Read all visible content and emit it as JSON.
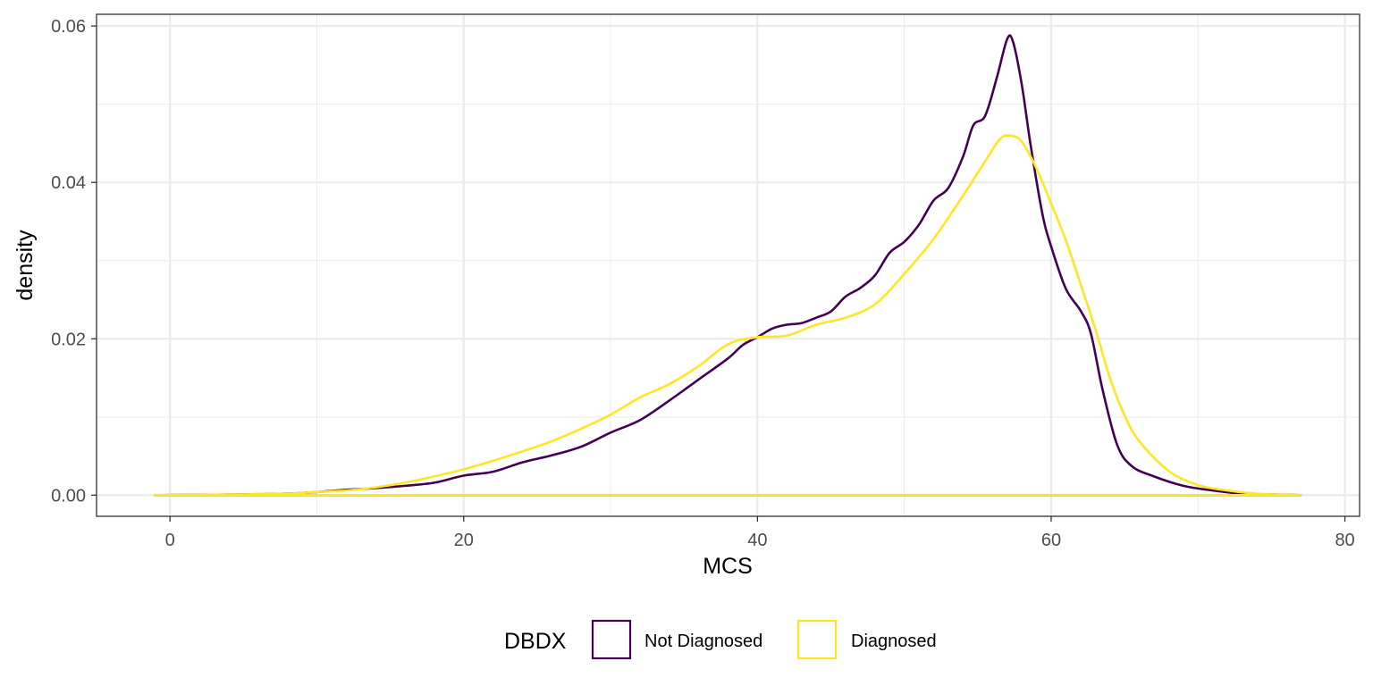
{
  "chart_data": {
    "type": "area",
    "title": "",
    "xlabel": "MCS",
    "ylabel": "density",
    "xlim": [
      -5,
      81
    ],
    "ylim": [
      -0.0027,
      0.0615
    ],
    "x_ticks": [
      0,
      20,
      40,
      60,
      80
    ],
    "y_ticks": [
      0.0,
      0.02,
      0.04,
      0.06
    ],
    "x_tick_labels": [
      "0",
      "20",
      "40",
      "60",
      "80"
    ],
    "y_tick_labels": [
      "0.00",
      "0.02",
      "0.04",
      "0.06"
    ],
    "grid": true,
    "legend": {
      "position": "bottom",
      "title": "DBDX",
      "entries": [
        "Not Diagnosed",
        "Diagnosed"
      ]
    },
    "series": [
      {
        "name": "Not Diagnosed",
        "color": "#440154",
        "points": [
          [
            -1,
            0.0
          ],
          [
            5,
            0.0001
          ],
          [
            8,
            0.0002
          ],
          [
            10,
            0.0004
          ],
          [
            12,
            0.0007
          ],
          [
            14,
            0.0009
          ],
          [
            16,
            0.0012
          ],
          [
            18,
            0.0016
          ],
          [
            20,
            0.0025
          ],
          [
            22,
            0.003
          ],
          [
            24,
            0.0042
          ],
          [
            26,
            0.0051
          ],
          [
            28,
            0.0062
          ],
          [
            30,
            0.008
          ],
          [
            32,
            0.0096
          ],
          [
            34,
            0.0121
          ],
          [
            36,
            0.0148
          ],
          [
            38,
            0.0175
          ],
          [
            39,
            0.0192
          ],
          [
            40,
            0.0202
          ],
          [
            41,
            0.0213
          ],
          [
            42,
            0.0218
          ],
          [
            43,
            0.022
          ],
          [
            44,
            0.0227
          ],
          [
            45,
            0.0235
          ],
          [
            46,
            0.0254
          ],
          [
            47,
            0.0265
          ],
          [
            48,
            0.0281
          ],
          [
            49,
            0.031
          ],
          [
            50,
            0.0324
          ],
          [
            51,
            0.0346
          ],
          [
            52,
            0.0377
          ],
          [
            53,
            0.0393
          ],
          [
            54,
            0.0433
          ],
          [
            54.7,
            0.0473
          ],
          [
            55.5,
            0.0485
          ],
          [
            56.3,
            0.0534
          ],
          [
            57,
            0.0583
          ],
          [
            57.4,
            0.058
          ],
          [
            58,
            0.0525
          ],
          [
            58.6,
            0.0448
          ],
          [
            59.4,
            0.036
          ],
          [
            60,
            0.0318
          ],
          [
            61,
            0.0264
          ],
          [
            62,
            0.0236
          ],
          [
            62.7,
            0.0207
          ],
          [
            63.5,
            0.0135
          ],
          [
            64.5,
            0.0064
          ],
          [
            65.5,
            0.0037
          ],
          [
            67,
            0.0024
          ],
          [
            69,
            0.0012
          ],
          [
            71,
            0.0006
          ],
          [
            73,
            0.0002
          ],
          [
            75,
            0.0001
          ],
          [
            77,
            0.0
          ]
        ]
      },
      {
        "name": "Diagnosed",
        "color": "#FDE725",
        "points": [
          [
            -1,
            0.0
          ],
          [
            5,
            0.0001
          ],
          [
            8,
            0.0002
          ],
          [
            10,
            0.0004
          ],
          [
            12,
            0.0006
          ],
          [
            14,
            0.001
          ],
          [
            16,
            0.0016
          ],
          [
            18,
            0.0024
          ],
          [
            20,
            0.0033
          ],
          [
            22,
            0.0044
          ],
          [
            24,
            0.0056
          ],
          [
            26,
            0.0069
          ],
          [
            28,
            0.0085
          ],
          [
            30,
            0.0103
          ],
          [
            32,
            0.0125
          ],
          [
            34,
            0.0142
          ],
          [
            36,
            0.0165
          ],
          [
            38,
            0.0193
          ],
          [
            40,
            0.0202
          ],
          [
            42,
            0.0204
          ],
          [
            44,
            0.0218
          ],
          [
            46,
            0.0227
          ],
          [
            48,
            0.0244
          ],
          [
            50,
            0.0283
          ],
          [
            52,
            0.0328
          ],
          [
            54,
            0.0383
          ],
          [
            55.5,
            0.0427
          ],
          [
            56.5,
            0.0455
          ],
          [
            57.2,
            0.046
          ],
          [
            58,
            0.0452
          ],
          [
            59,
            0.0418
          ],
          [
            60,
            0.0373
          ],
          [
            61,
            0.0326
          ],
          [
            62,
            0.027
          ],
          [
            63,
            0.0213
          ],
          [
            64,
            0.015
          ],
          [
            65,
            0.0102
          ],
          [
            66,
            0.0069
          ],
          [
            68,
            0.0031
          ],
          [
            70,
            0.0013
          ],
          [
            72,
            0.0006
          ],
          [
            74,
            0.0002
          ],
          [
            77,
            0.0
          ]
        ]
      }
    ]
  }
}
